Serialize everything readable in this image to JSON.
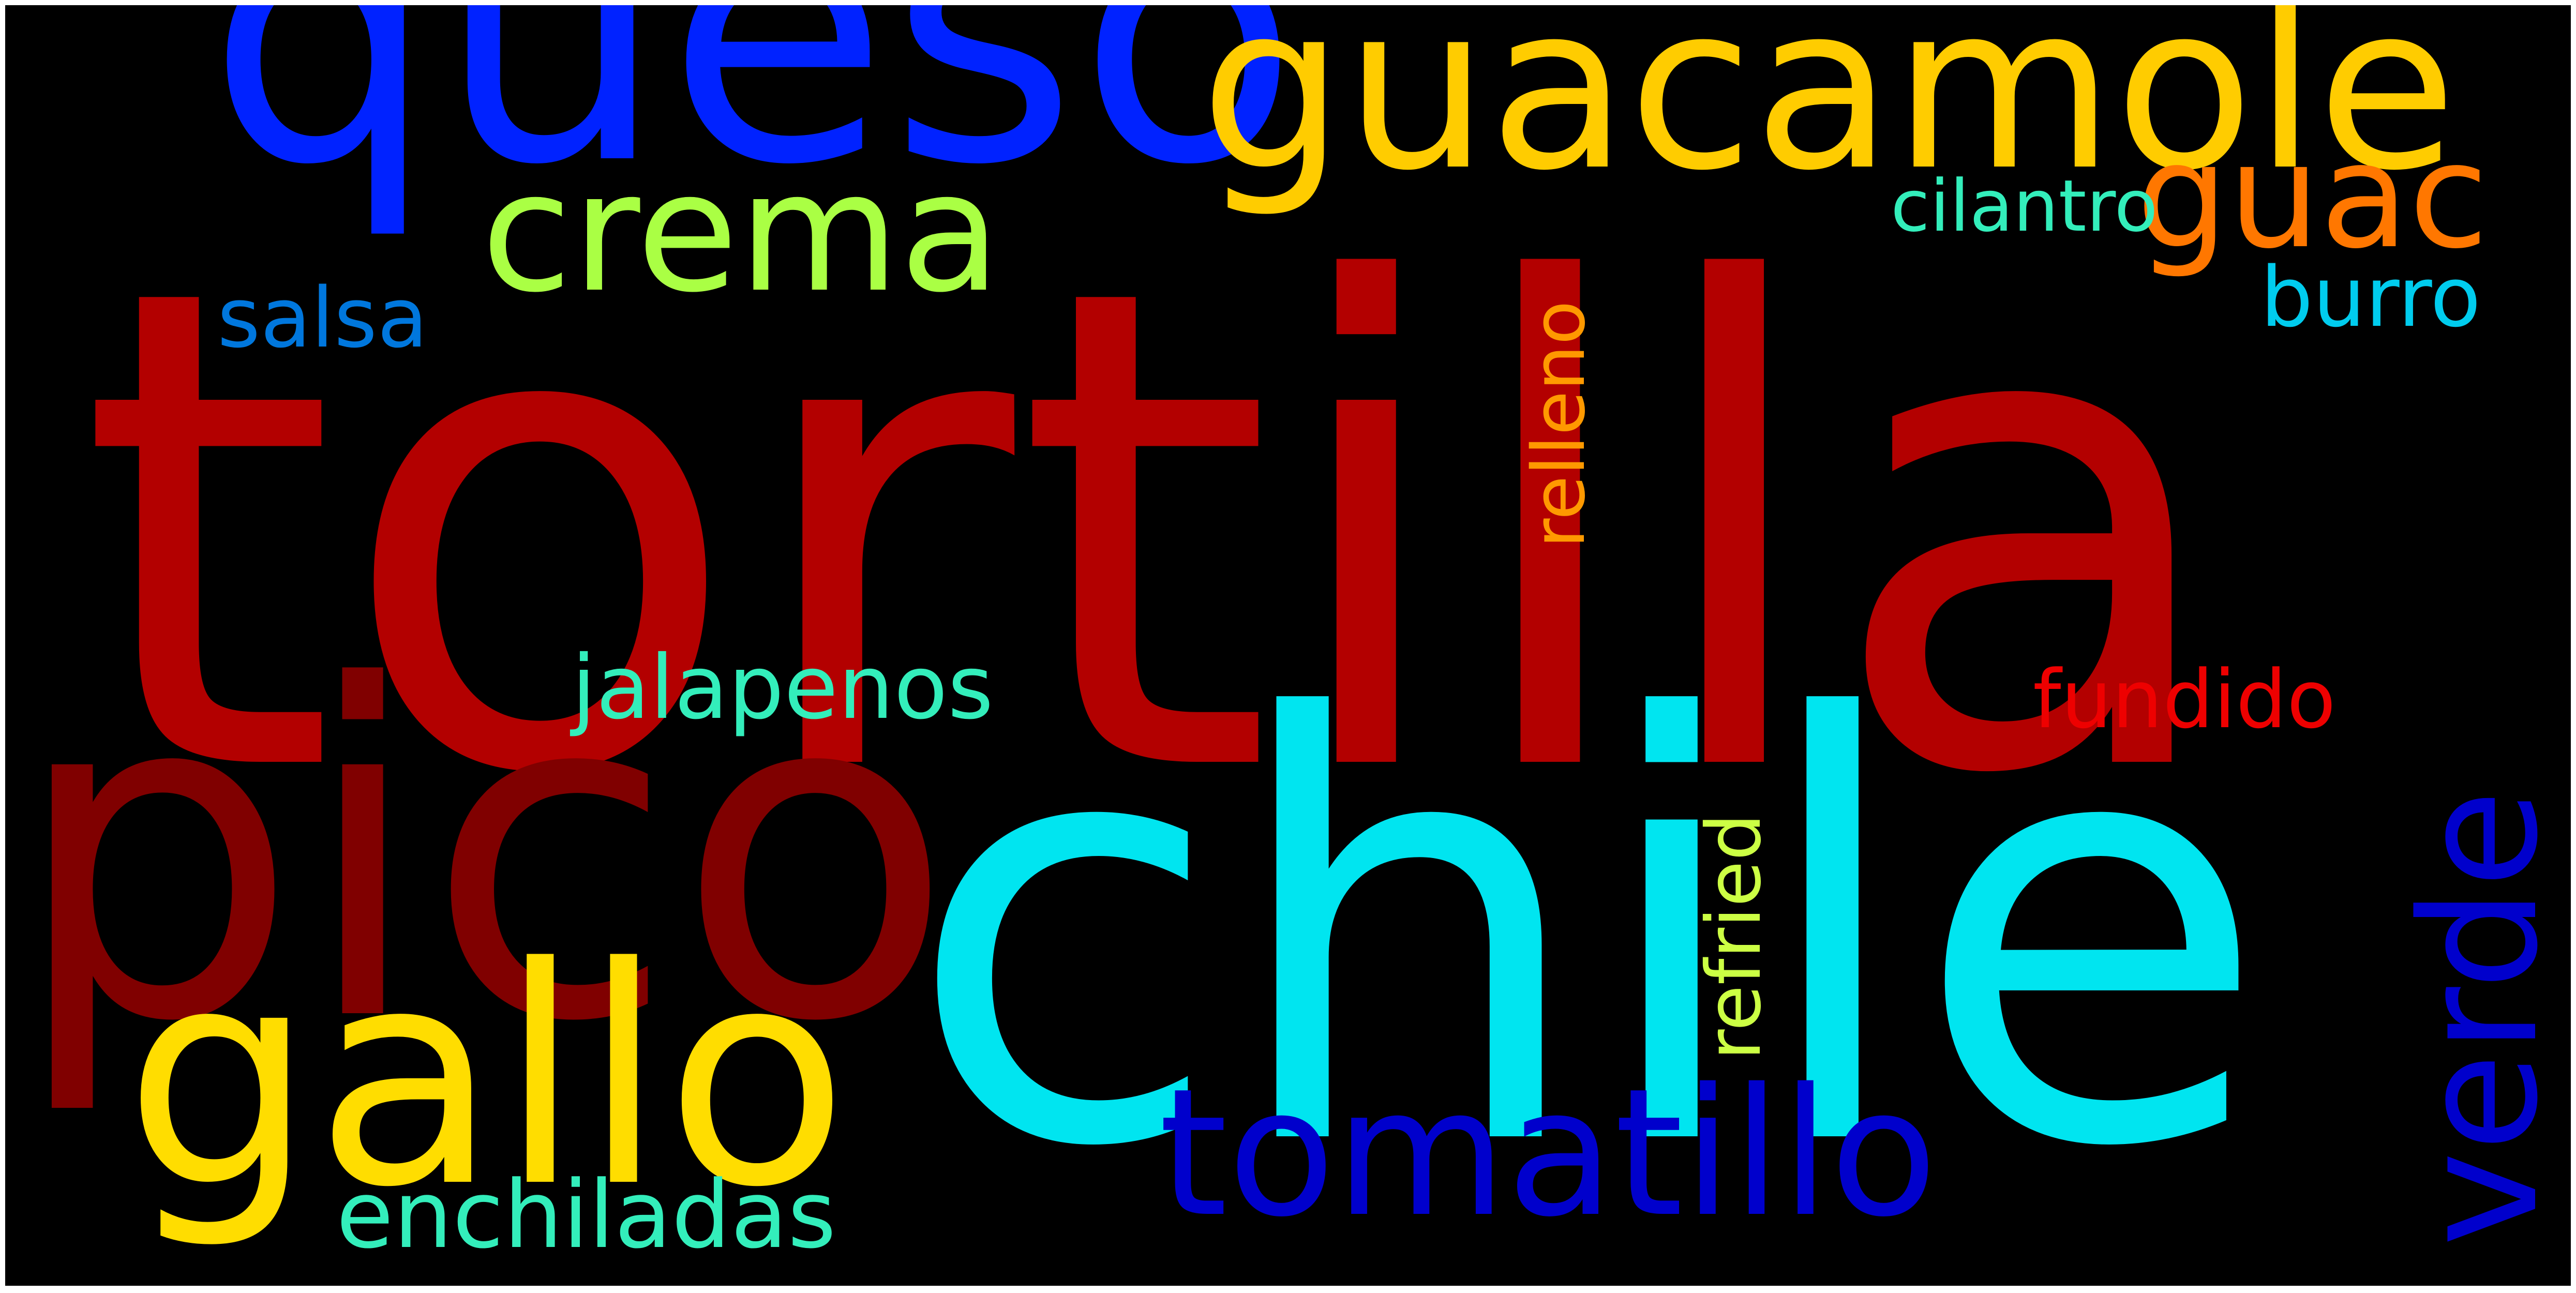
{
  "wordcloud": {
    "background": "#000000",
    "words": [
      {
        "key": "tortilla",
        "text": "tortilla",
        "color": "#b30000",
        "orientation": "horizontal"
      },
      {
        "key": "chile",
        "text": "chile",
        "color": "#00e5f0",
        "orientation": "horizontal"
      },
      {
        "key": "pico",
        "text": "pico",
        "color": "#800000",
        "orientation": "horizontal"
      },
      {
        "key": "queso",
        "text": "queso",
        "color": "#0022ff",
        "orientation": "horizontal"
      },
      {
        "key": "guacamole",
        "text": "guacamole",
        "color": "#ffcc00",
        "orientation": "horizontal"
      },
      {
        "key": "gallo",
        "text": "gallo",
        "color": "#ffdd00",
        "orientation": "horizontal"
      },
      {
        "key": "tomatillo",
        "text": "tomatillo",
        "color": "#0000cc",
        "orientation": "horizontal"
      },
      {
        "key": "crema",
        "text": "crema",
        "color": "#aaff44",
        "orientation": "horizontal"
      },
      {
        "key": "verde",
        "text": "verde",
        "color": "#0000cc",
        "orientation": "vertical"
      },
      {
        "key": "guac",
        "text": "guac",
        "color": "#ff7700",
        "orientation": "horizontal"
      },
      {
        "key": "enchiladas",
        "text": "enchiladas",
        "color": "#33eebb",
        "orientation": "horizontal"
      },
      {
        "key": "jalapenos",
        "text": "jalapenos",
        "color": "#33eebb",
        "orientation": "horizontal"
      },
      {
        "key": "fundido",
        "text": "fundido",
        "color": "#ee0000",
        "orientation": "horizontal"
      },
      {
        "key": "cilantro",
        "text": "cilantro",
        "color": "#33eebb",
        "orientation": "horizontal"
      },
      {
        "key": "relleno",
        "text": "relleno",
        "color": "#ff9900",
        "orientation": "vertical"
      },
      {
        "key": "refried",
        "text": "refried",
        "color": "#ccff44",
        "orientation": "vertical"
      },
      {
        "key": "salsa",
        "text": "salsa",
        "color": "#0077dd",
        "orientation": "horizontal"
      },
      {
        "key": "burro",
        "text": "burro",
        "color": "#00ccee",
        "orientation": "horizontal"
      }
    ]
  }
}
